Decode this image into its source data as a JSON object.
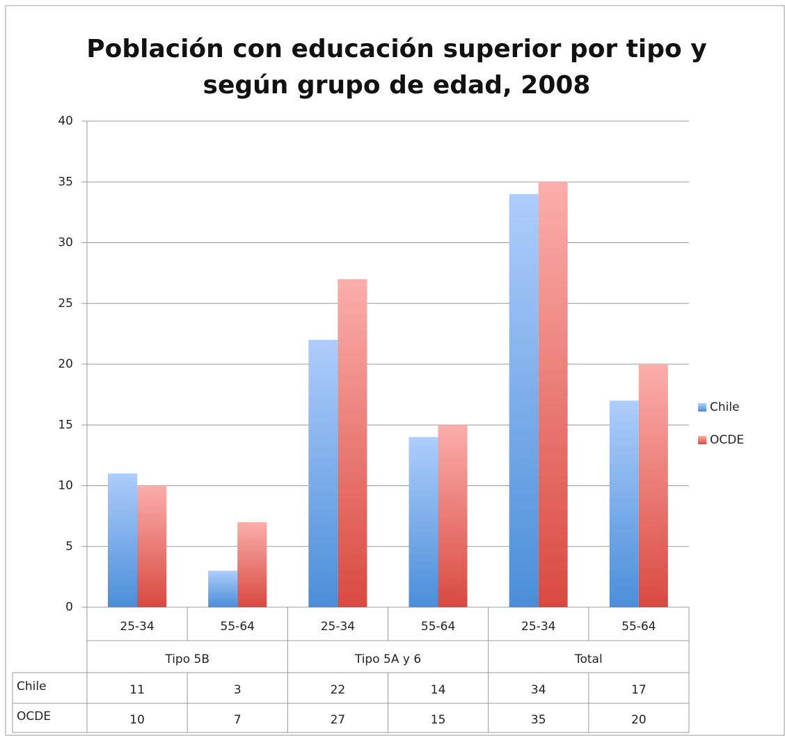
{
  "chart_data": {
    "type": "bar",
    "title": [
      "Población con educación superior por tipo y",
      "según grupo de edad, 2008"
    ],
    "categories": [
      "25-34",
      "55-64",
      "25-34",
      "55-64",
      "25-34",
      "55-64"
    ],
    "groups": [
      "Tipo 5B",
      "Tipo 5A y 6",
      "Total"
    ],
    "series": [
      {
        "name": "Chile",
        "color": "#4a8ed8",
        "values": [
          11,
          3,
          22,
          14,
          34,
          17
        ]
      },
      {
        "name": "OCDE",
        "color": "#d84a40",
        "values": [
          10,
          7,
          27,
          15,
          35,
          20
        ]
      }
    ],
    "ylim": [
      0,
      40
    ],
    "yticks": [
      0,
      5,
      10,
      15,
      20,
      25,
      30,
      35,
      40
    ],
    "grid": true,
    "legend": "right",
    "data_table": true
  }
}
